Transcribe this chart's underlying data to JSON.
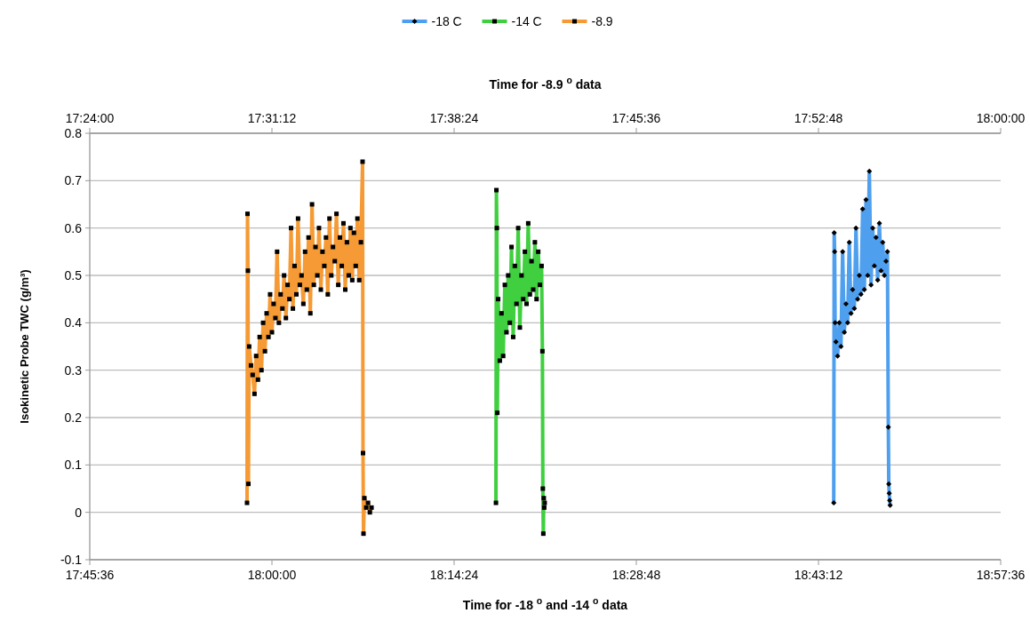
{
  "chart_data": {
    "type": "line",
    "xlabel": "Time for -18 $^{o}$ and -14 $^{o}$ data",
    "x2label": "Time for -8.9 $^{o}$ data",
    "ylabel": "Isokinetic Probe TWC (g/m³)",
    "xlim": [
      17.76,
      18.96
    ],
    "xticks": [
      {
        "value": 17.76,
        "label": "17:45:36"
      },
      {
        "value": 18.0,
        "label": "18:00:00"
      },
      {
        "value": 18.24,
        "label": "18:14:24"
      },
      {
        "value": 18.48,
        "label": "18:28:48"
      },
      {
        "value": 18.72,
        "label": "18:43:12"
      },
      {
        "value": 18.96,
        "label": "18:57:36"
      }
    ],
    "x2lim": [
      17.4,
      18.0
    ],
    "x2ticks": [
      {
        "value": 17.4,
        "label": "17:24:00"
      },
      {
        "value": 17.52,
        "label": "17:31:12"
      },
      {
        "value": 17.64,
        "label": "17:38:24"
      },
      {
        "value": 17.76,
        "label": "17:45:36"
      },
      {
        "value": 17.88,
        "label": "17:52:48"
      },
      {
        "value": 18.0,
        "label": "18:00:00"
      }
    ],
    "ylim": [
      -0.1,
      0.8
    ],
    "yticks": [
      -0.1,
      0,
      0.1,
      0.2,
      0.3,
      0.4,
      0.5,
      0.6,
      0.7,
      0.8
    ],
    "grid": "y",
    "legend": "top",
    "line_style": "solid",
    "series": [
      {
        "name": "-18 C",
        "color": "#4f9fef",
        "marker": "diamond",
        "x": [
          18.7401,
          18.7407,
          18.7413,
          18.7419,
          18.743,
          18.7452,
          18.7474,
          18.7496,
          18.7518,
          18.754,
          18.7562,
          18.7584,
          18.7606,
          18.7628,
          18.765,
          18.7672,
          18.7694,
          18.7716,
          18.7738,
          18.776,
          18.7782,
          18.7804,
          18.7826,
          18.7848,
          18.787,
          18.7892,
          18.7914,
          18.7936,
          18.7958,
          18.798,
          18.8002,
          18.8024,
          18.8046,
          18.8068,
          18.809,
          18.8108,
          18.812,
          18.8126,
          18.8132,
          18.8138,
          18.8144
        ],
        "values": [
          0.02,
          0.59,
          0.55,
          0.4,
          0.36,
          0.33,
          0.4,
          0.35,
          0.55,
          0.38,
          0.44,
          0.4,
          0.57,
          0.42,
          0.47,
          0.43,
          0.6,
          0.45,
          0.5,
          0.46,
          0.64,
          0.47,
          0.66,
          0.5,
          0.72,
          0.48,
          0.6,
          0.52,
          0.58,
          0.49,
          0.61,
          0.51,
          0.57,
          0.5,
          0.53,
          0.55,
          0.18,
          0.06,
          0.04,
          0.025,
          0.015
        ]
      },
      {
        "name": "-14 C",
        "color": "#3fcf3f",
        "marker": "square",
        "x": [
          18.2951,
          18.2957,
          18.2963,
          18.2969,
          18.298,
          18.3002,
          18.3024,
          18.3046,
          18.3068,
          18.309,
          18.3112,
          18.3134,
          18.3156,
          18.3178,
          18.32,
          18.3222,
          18.3244,
          18.3266,
          18.3288,
          18.331,
          18.3332,
          18.3354,
          18.3376,
          18.3398,
          18.342,
          18.3442,
          18.3464,
          18.3486,
          18.3508,
          18.353,
          18.3552,
          18.3563,
          18.3569,
          18.3575,
          18.3581,
          18.3587,
          18.3593
        ],
        "values": [
          0.02,
          0.68,
          0.6,
          0.21,
          0.45,
          0.32,
          0.42,
          0.33,
          0.48,
          0.38,
          0.5,
          0.4,
          0.56,
          0.37,
          0.52,
          0.44,
          0.6,
          0.39,
          0.5,
          0.45,
          0.55,
          0.44,
          0.61,
          0.46,
          0.53,
          0.47,
          0.57,
          0.45,
          0.55,
          0.48,
          0.52,
          0.34,
          0.05,
          -0.045,
          0.03,
          0.01,
          0.02
        ]
      },
      {
        "name": "-8.9",
        "color": "#f59a34",
        "marker": "square",
        "axis": "x2",
        "x": [
          17.5036,
          17.5039,
          17.5042,
          17.5045,
          17.505,
          17.5062,
          17.5073,
          17.5085,
          17.5096,
          17.5108,
          17.5119,
          17.5131,
          17.5142,
          17.5154,
          17.5165,
          17.5177,
          17.5188,
          17.52,
          17.5211,
          17.5223,
          17.5234,
          17.5246,
          17.5257,
          17.5269,
          17.528,
          17.5292,
          17.5303,
          17.5315,
          17.5326,
          17.5338,
          17.5349,
          17.5361,
          17.5372,
          17.5384,
          17.5395,
          17.5407,
          17.5418,
          17.543,
          17.5441,
          17.5453,
          17.5464,
          17.5476,
          17.5487,
          17.5499,
          17.551,
          17.5522,
          17.5533,
          17.5545,
          17.5556,
          17.5568,
          17.5579,
          17.5591,
          17.5602,
          17.5614,
          17.5625,
          17.5637,
          17.5648,
          17.566,
          17.5671,
          17.5683,
          17.5694,
          17.5706,
          17.5717,
          17.5729,
          17.574,
          17.5752,
          17.5763,
          17.5775,
          17.5786,
          17.5797,
          17.58,
          17.5803,
          17.5809,
          17.5821,
          17.5833,
          17.5845,
          17.5856
        ],
        "values": [
          0.02,
          0.63,
          0.51,
          0.06,
          0.35,
          0.31,
          0.29,
          0.25,
          0.33,
          0.28,
          0.37,
          0.3,
          0.4,
          0.34,
          0.42,
          0.37,
          0.46,
          0.38,
          0.44,
          0.41,
          0.55,
          0.4,
          0.46,
          0.43,
          0.5,
          0.41,
          0.48,
          0.45,
          0.6,
          0.43,
          0.52,
          0.46,
          0.62,
          0.48,
          0.5,
          0.44,
          0.55,
          0.47,
          0.58,
          0.42,
          0.65,
          0.48,
          0.56,
          0.5,
          0.6,
          0.47,
          0.55,
          0.52,
          0.58,
          0.46,
          0.62,
          0.5,
          0.56,
          0.53,
          0.63,
          0.48,
          0.58,
          0.52,
          0.61,
          0.47,
          0.57,
          0.5,
          0.6,
          0.49,
          0.59,
          0.52,
          0.62,
          0.49,
          0.57,
          0.74,
          0.125,
          -0.045,
          0.03,
          0.01,
          0.02,
          0.0,
          0.01
        ]
      }
    ]
  }
}
